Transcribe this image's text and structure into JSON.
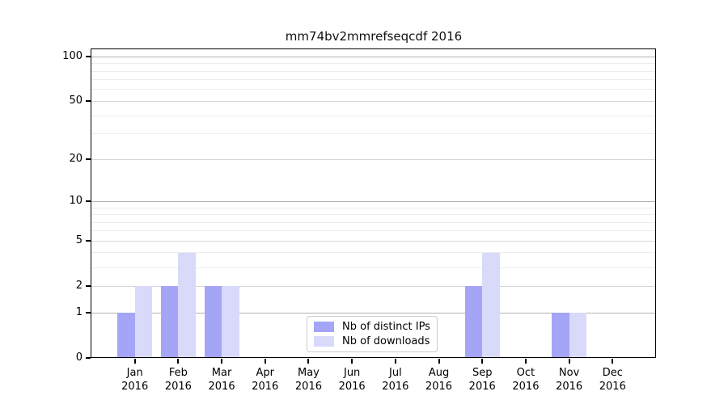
{
  "chart_data": {
    "type": "bar",
    "title": "mm74bv2mmrefseqcdf 2016",
    "categories": [
      "Jan 2016",
      "Feb 2016",
      "Mar 2016",
      "Apr 2016",
      "May 2016",
      "Jun 2016",
      "Jul 2016",
      "Aug 2016",
      "Sep 2016",
      "Oct 2016",
      "Nov 2016",
      "Dec 2016"
    ],
    "series": [
      {
        "name": "Nb of distinct IPs",
        "color": "#a5a5f7",
        "values": [
          1,
          2,
          2,
          0,
          0,
          0,
          0,
          0,
          2,
          0,
          1,
          0
        ]
      },
      {
        "name": "Nb of downloads",
        "color": "#d9d9fa",
        "values": [
          2,
          4,
          2,
          0,
          0,
          0,
          0,
          0,
          4,
          0,
          1,
          0
        ]
      }
    ],
    "xlabel": "",
    "ylabel": "",
    "yscale": "log1p",
    "ylim": [
      0,
      115
    ],
    "y_ticks": [
      0,
      1,
      2,
      5,
      10,
      20,
      50,
      100
    ],
    "y_minor_ticks": [
      3,
      4,
      6,
      7,
      8,
      9,
      30,
      40,
      60,
      70,
      80,
      90
    ],
    "grid": "on",
    "legend_position": "inside-lower-center"
  }
}
